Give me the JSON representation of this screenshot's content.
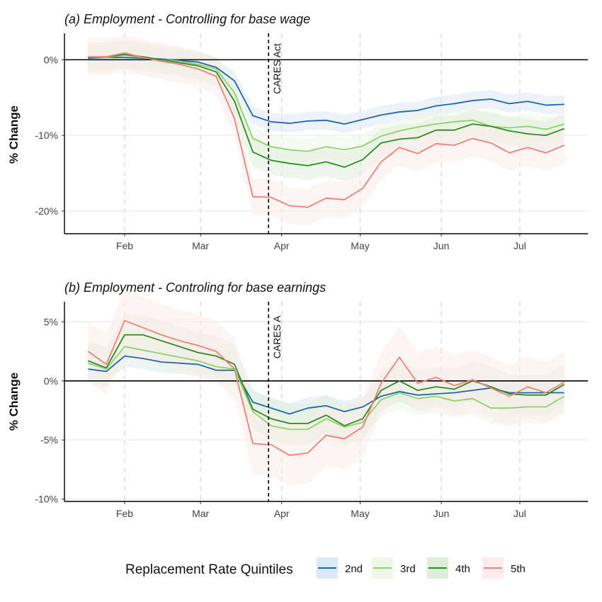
{
  "chart_data": [
    {
      "type": "line",
      "title": "(a) Employment - Controlling for base wage",
      "ylabel": "% Change",
      "ylim": [
        -23,
        3.5
      ],
      "yticks": [
        0,
        -10,
        -20
      ],
      "ytick_labels": [
        "0%",
        "-10%",
        "-20%"
      ],
      "x_tick_labels": [
        "Feb",
        "Mar",
        "Apr",
        "May",
        "Jun",
        "Jul"
      ],
      "x_tick_dates": [
        "2020-02-01",
        "2020-03-01",
        "2020-04-01",
        "2020-05-01",
        "2020-06-01",
        "2020-07-01"
      ],
      "xlim": [
        "2020-01-09",
        "2020-07-27"
      ],
      "vline": {
        "date": "2020-03-27",
        "label": "CARES Act"
      },
      "x": [
        "2020-01-18",
        "2020-01-25",
        "2020-02-01",
        "2020-02-08",
        "2020-02-15",
        "2020-02-22",
        "2020-02-29",
        "2020-03-07",
        "2020-03-14",
        "2020-03-21",
        "2020-03-28",
        "2020-04-04",
        "2020-04-11",
        "2020-04-18",
        "2020-04-25",
        "2020-05-02",
        "2020-05-09",
        "2020-05-16",
        "2020-05-23",
        "2020-05-30",
        "2020-06-06",
        "2020-06-13",
        "2020-06-20",
        "2020-06-27",
        "2020-07-04",
        "2020-07-11",
        "2020-07-18"
      ],
      "series": [
        {
          "name": "2nd",
          "color": "#2166AC",
          "values": [
            0.2,
            0.3,
            0.3,
            0.2,
            0.1,
            -0.1,
            -0.3,
            -1.0,
            -2.8,
            -7.4,
            -8.2,
            -8.4,
            -8.1,
            -8.0,
            -8.5,
            -7.9,
            -7.3,
            -6.9,
            -6.7,
            -6.1,
            -5.8,
            -5.4,
            -5.2,
            -5.8,
            -5.5,
            -6.0,
            -5.9
          ],
          "band": 1.2
        },
        {
          "name": "3rd",
          "color": "#8FD16F",
          "values": [
            0.3,
            0.3,
            0.6,
            0.3,
            0.0,
            -0.2,
            -0.6,
            -1.2,
            -4.4,
            -10.4,
            -11.5,
            -11.9,
            -12.1,
            -11.5,
            -11.9,
            -11.4,
            -10.1,
            -9.4,
            -8.9,
            -8.5,
            -8.2,
            -8.0,
            -8.8,
            -9.0,
            -8.8,
            -9.2,
            -8.5
          ],
          "band": 1.6
        },
        {
          "name": "4th",
          "color": "#2E8B22",
          "values": [
            0.3,
            0.4,
            0.7,
            0.4,
            0.0,
            -0.4,
            -0.8,
            -1.6,
            -5.5,
            -12.2,
            -13.3,
            -13.7,
            -14.0,
            -13.5,
            -14.2,
            -13.2,
            -11.0,
            -10.5,
            -10.3,
            -9.3,
            -9.3,
            -8.5,
            -8.8,
            -9.4,
            -9.8,
            -10.0,
            -9.1
          ],
          "band": 1.9
        },
        {
          "name": "5th",
          "color": "#EE8077",
          "values": [
            0.4,
            0.4,
            0.9,
            0.3,
            -0.2,
            -0.6,
            -1.2,
            -2.2,
            -7.8,
            -18.1,
            -18.2,
            -19.3,
            -19.5,
            -18.3,
            -18.5,
            -17.0,
            -13.5,
            -11.6,
            -12.4,
            -11.1,
            -11.3,
            -10.4,
            -11.0,
            -12.3,
            -11.6,
            -12.3,
            -11.3
          ],
          "band": 2.4
        }
      ]
    },
    {
      "type": "line",
      "title": "(b) Employment - Controling for base earnings",
      "ylabel": "% Change",
      "ylim": [
        -10.2,
        6.7
      ],
      "yticks": [
        5,
        0,
        -5,
        -10
      ],
      "ytick_labels": [
        "5%",
        "0%",
        "-5%",
        "-10%"
      ],
      "x_tick_labels": [
        "Feb",
        "Mar",
        "Apr",
        "May",
        "Jun",
        "Jul"
      ],
      "x_tick_dates": [
        "2020-02-01",
        "2020-03-01",
        "2020-04-01",
        "2020-05-01",
        "2020-06-01",
        "2020-07-01"
      ],
      "xlim": [
        "2020-01-09",
        "2020-07-27"
      ],
      "vline": {
        "date": "2020-03-27",
        "label": "CARES A"
      },
      "x": [
        "2020-01-18",
        "2020-01-25",
        "2020-02-01",
        "2020-02-08",
        "2020-02-15",
        "2020-02-22",
        "2020-02-29",
        "2020-03-07",
        "2020-03-14",
        "2020-03-21",
        "2020-03-28",
        "2020-04-04",
        "2020-04-11",
        "2020-04-18",
        "2020-04-25",
        "2020-05-02",
        "2020-05-09",
        "2020-05-16",
        "2020-05-23",
        "2020-05-30",
        "2020-06-06",
        "2020-06-13",
        "2020-06-20",
        "2020-06-27",
        "2020-07-04",
        "2020-07-11",
        "2020-07-18"
      ],
      "series": [
        {
          "name": "2nd",
          "color": "#2166AC",
          "values": [
            1.0,
            0.8,
            2.1,
            1.9,
            1.6,
            1.5,
            1.4,
            0.9,
            0.9,
            -1.8,
            -2.3,
            -2.8,
            -2.3,
            -2.1,
            -2.6,
            -2.2,
            -1.3,
            -0.9,
            -1.2,
            -1.1,
            -1.0,
            -0.8,
            -0.6,
            -1.0,
            -1.0,
            -1.0,
            -1.0
          ],
          "band": 0.9
        },
        {
          "name": "3rd",
          "color": "#8FD16F",
          "values": [
            1.5,
            1.0,
            2.9,
            2.6,
            2.3,
            2.0,
            1.7,
            1.2,
            1.0,
            -2.6,
            -3.8,
            -4.1,
            -4.1,
            -3.2,
            -3.9,
            -3.5,
            -1.6,
            -1.0,
            -1.5,
            -1.3,
            -1.7,
            -1.5,
            -2.3,
            -2.3,
            -2.2,
            -2.2,
            -1.3
          ],
          "band": 1.4
        },
        {
          "name": "4th",
          "color": "#2E8B22",
          "values": [
            1.7,
            1.1,
            3.9,
            3.9,
            3.4,
            2.9,
            2.4,
            2.1,
            1.4,
            -2.4,
            -3.2,
            -3.6,
            -3.6,
            -2.9,
            -3.8,
            -3.2,
            -0.8,
            0.0,
            -0.8,
            -0.5,
            -0.7,
            0.0,
            -0.5,
            -1.1,
            -1.2,
            -1.2,
            -0.3
          ],
          "band": 1.7
        },
        {
          "name": "5th",
          "color": "#EE8077",
          "values": [
            2.5,
            1.4,
            5.1,
            4.5,
            3.9,
            3.4,
            3.0,
            2.5,
            1.0,
            -5.3,
            -5.4,
            -6.3,
            -6.1,
            -4.6,
            -4.9,
            -3.9,
            -0.2,
            2.0,
            -0.2,
            0.3,
            -0.4,
            0.1,
            -0.6,
            -1.3,
            -0.5,
            -1.0,
            -0.1
          ],
          "band": 2.6
        }
      ]
    }
  ],
  "legend": {
    "title": "Replacement Rate Quintiles",
    "position": "bottom",
    "items": [
      {
        "label": "2nd",
        "color": "#2166AC",
        "fill": "#DCE8F4"
      },
      {
        "label": "3rd",
        "color": "#8FD16F",
        "fill": "#EEF8E8"
      },
      {
        "label": "4th",
        "color": "#2E8B22",
        "fill": "#DFEEDB"
      },
      {
        "label": "5th",
        "color": "#EE8077",
        "fill": "#FCECEA"
      }
    ]
  }
}
